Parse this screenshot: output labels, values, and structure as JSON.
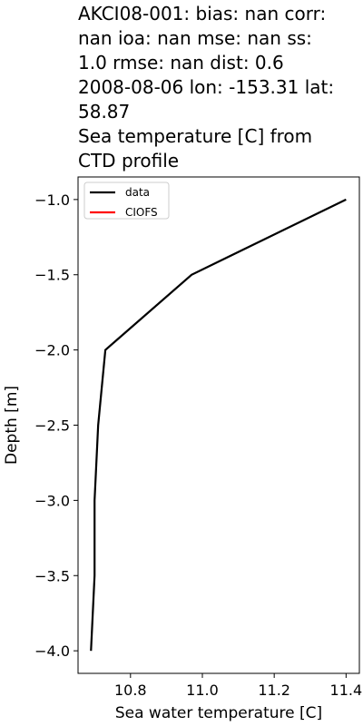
{
  "chart_data": {
    "type": "line",
    "title": [
      "AKCI08-001: bias: nan  corr:",
      "nan  ioa: nan  mse: nan  ss:",
      "1.0  rmse: nan  dist: 0.6",
      "2008-08-06 lon: -153.31 lat:",
      "58.87",
      "Sea temperature [C] from",
      "CTD profile"
    ],
    "x_label": "Sea water temperature [C]",
    "y_label": "Depth [m]",
    "y": [
      -1.0,
      -1.5,
      -2.0,
      -2.5,
      -3.0,
      -3.5,
      -4.0
    ],
    "series": [
      {
        "name": "data",
        "color": "#000000",
        "values": [
          11.4,
          10.97,
          10.73,
          10.71,
          10.7,
          10.7,
          10.69
        ]
      },
      {
        "name": "CIOFS",
        "color": "#ff0000",
        "values": [
          null,
          null,
          null,
          null,
          null,
          null,
          null
        ]
      }
    ],
    "xlim": [
      10.654,
      11.437
    ],
    "ylim": [
      -4.15,
      -0.85
    ],
    "xticks": [
      10.8,
      {
        "value": 11.0,
        "label": "11.0"
      },
      11.2,
      11.4
    ],
    "yticks": [
      {
        "value": -1.0,
        "label": "−1.0"
      },
      {
        "value": -1.5,
        "label": "−1.5"
      },
      {
        "value": -2.0,
        "label": "−2.0"
      },
      {
        "value": -2.5,
        "label": "−2.5"
      },
      {
        "value": -3.0,
        "label": "−3.0"
      },
      {
        "value": -3.5,
        "label": "−3.5"
      },
      {
        "value": -4.0,
        "label": "−4.0"
      }
    ],
    "legend": "upper left"
  }
}
